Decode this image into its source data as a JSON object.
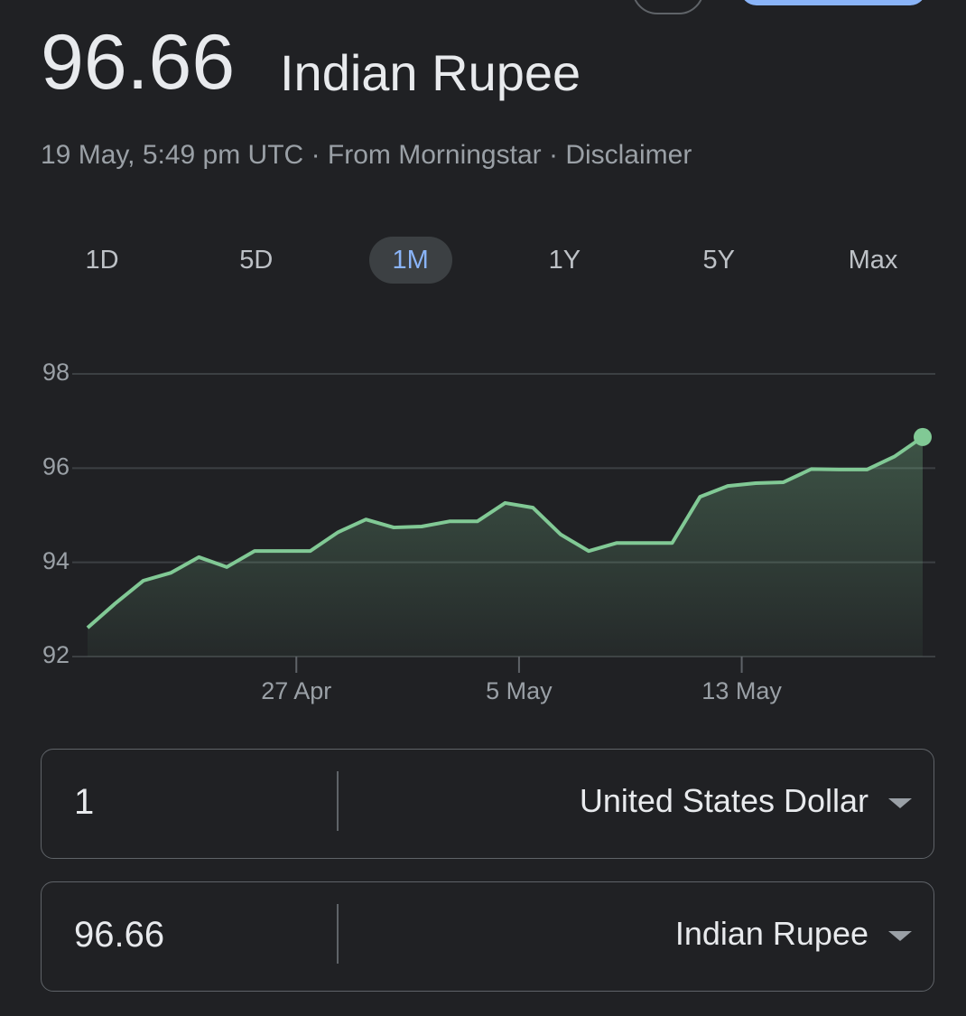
{
  "header": {
    "value": "96.66",
    "unit": "Indian Rupee",
    "time": "19 May, 5:49 pm UTC",
    "separator": "·",
    "source": "From Morningstar",
    "disclaimer": "Disclaimer"
  },
  "ranges": {
    "options": [
      "1D",
      "5D",
      "1M",
      "1Y",
      "5Y",
      "Max"
    ],
    "selected": 2
  },
  "chart_data": {
    "type": "line",
    "color": "#81c995",
    "grid": true,
    "categories": [
      null,
      null,
      null,
      null,
      null,
      null,
      null,
      null,
      null,
      null,
      null,
      null,
      null,
      null,
      null,
      null,
      null,
      null,
      null,
      null,
      null,
      null,
      null,
      null,
      null,
      null,
      null,
      null,
      null,
      null,
      null
    ],
    "values": [
      92.61,
      93.13,
      93.61,
      93.78,
      94.11,
      93.9,
      94.24,
      94.24,
      94.24,
      94.64,
      94.91,
      94.74,
      94.76,
      94.87,
      94.87,
      95.26,
      95.16,
      94.59,
      94.24,
      94.41,
      94.41,
      94.41,
      95.39,
      95.62,
      95.68,
      95.7,
      95.98,
      95.97,
      95.97,
      96.25,
      96.66
    ],
    "xlim": [
      0,
      30
    ],
    "xticks": [
      {
        "value": 7.5,
        "label": "27 Apr"
      },
      {
        "value": 15.5,
        "label": "5 May"
      },
      {
        "value": 23.5,
        "label": "13 May"
      }
    ],
    "ylim": [
      92,
      98
    ],
    "yticks": [
      92,
      94,
      96,
      98
    ]
  },
  "converter": [
    {
      "amount": "1",
      "currency": "United States Dollar"
    },
    {
      "amount": "96.66",
      "currency": "Indian Rupee"
    }
  ]
}
